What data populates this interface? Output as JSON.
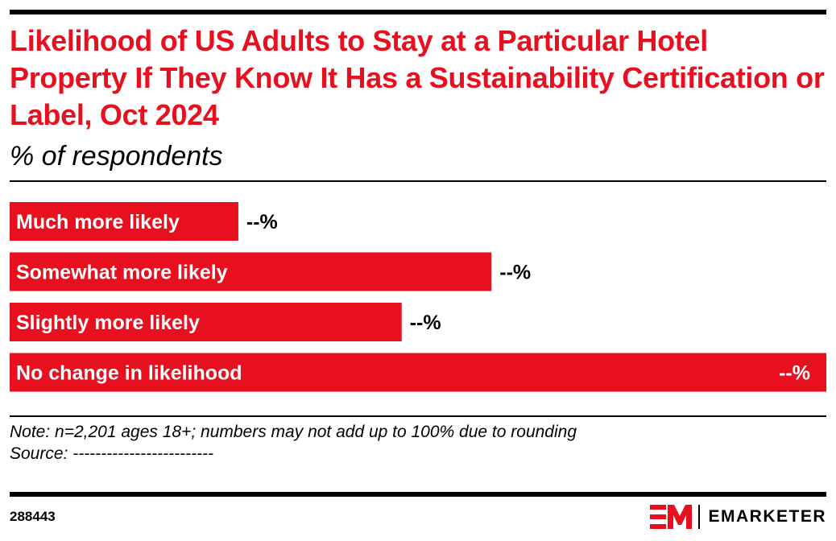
{
  "header": {
    "title": "Likelihood of US Adults to Stay at a Particular Hotel Property If They Know It Has a Sustainability Certification or Label, Oct 2024",
    "subtitle": "% of respondents"
  },
  "chart_data": {
    "type": "bar",
    "orientation": "horizontal",
    "categories": [
      "Much more likely",
      "Somewhat more likely",
      "Slightly more likely",
      "No change in likelihood"
    ],
    "values": [
      28,
      59,
      48,
      100
    ],
    "value_labels": [
      "--%",
      "--%",
      "--%",
      "--%"
    ],
    "value_note": "values are relative bar lengths; the chart prints masked labels",
    "xlim": [
      0,
      100
    ],
    "grid": false,
    "legend": "none",
    "bar_color": "#e8101e",
    "label_color": "#ffffff",
    "value_color": "#000000"
  },
  "footer": {
    "note": "Note: n=2,201 ages 18+; numbers may not add up to 100% due to rounding",
    "source": "Source: -------------------------",
    "chart_id": "288443",
    "brand": "EMARKETER",
    "brand_mark": "em-logo-icon"
  },
  "colors": {
    "accent": "#e8101e",
    "text": "#000000",
    "background": "#ffffff"
  }
}
